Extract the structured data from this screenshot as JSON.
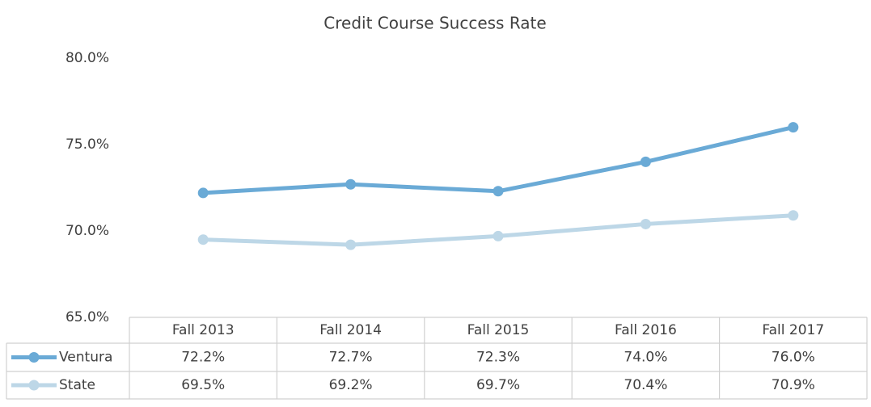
{
  "chart_data": {
    "type": "line",
    "title": "Credit Course Success Rate",
    "categories": [
      "Fall 2013",
      "Fall 2014",
      "Fall 2015",
      "Fall 2016",
      "Fall 2017"
    ],
    "series": [
      {
        "name": "Ventura",
        "color": "#6aaad6",
        "values": [
          72.2,
          72.7,
          72.3,
          74.0,
          76.0
        ],
        "value_labels": [
          "72.2%",
          "72.7%",
          "72.3%",
          "74.0%",
          "76.0%"
        ]
      },
      {
        "name": "State",
        "color": "#bdd7e7",
        "values": [
          69.5,
          69.2,
          69.7,
          70.4,
          70.9
        ],
        "value_labels": [
          "69.5%",
          "69.2%",
          "69.7%",
          "70.4%",
          "70.9%"
        ]
      }
    ],
    "ylim": [
      65,
      80
    ],
    "yticks": [
      {
        "value": 65,
        "label": "65.0%"
      },
      {
        "value": 70,
        "label": "70.0%"
      },
      {
        "value": 75,
        "label": "75.0%"
      },
      {
        "value": 80,
        "label": "80.0%"
      }
    ],
    "grid": false
  }
}
